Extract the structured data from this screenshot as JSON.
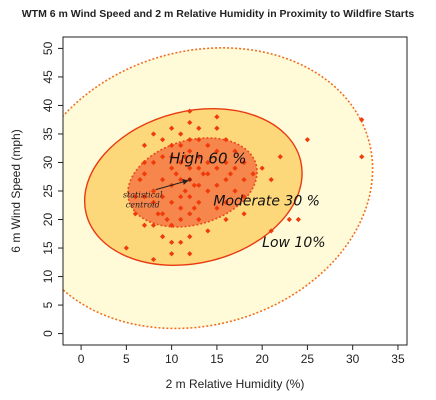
{
  "chart_data": {
    "type": "scatter",
    "title": "WTM 6 m Wind Speed and 2 m Relative Humidity in Proximity to Wildfire Starts",
    "xlabel": "2 m Relative Humidity (%)",
    "ylabel": "6 m Wind Speed (mph)",
    "xlim": [
      -2,
      36
    ],
    "ylim": [
      -2,
      52
    ],
    "x_ticks": [
      0,
      5,
      10,
      15,
      20,
      25,
      30,
      35
    ],
    "y_ticks": [
      0,
      5,
      10,
      15,
      20,
      25,
      30,
      35,
      40,
      45,
      50
    ],
    "grid": false,
    "zones": [
      {
        "label": "Low 10%",
        "center": [
          13,
          25.5
        ],
        "semi_x": 19.5,
        "semi_y": 24,
        "angle_deg": -16,
        "fill": "#fffbd9",
        "stroke": "#f07020",
        "dashed": true
      },
      {
        "label": "Moderate 30 %",
        "center": [
          12.4,
          25.7
        ],
        "semi_x": 12.2,
        "semi_y": 13.3,
        "angle_deg": -14,
        "fill": "#fdd87a",
        "stroke": "#e93a10",
        "dashed": false
      },
      {
        "label": "High 60 %",
        "center": [
          12.3,
          26.5
        ],
        "semi_x": 7.3,
        "semi_y": 7.4,
        "angle_deg": -16,
        "fill": "#f7864c",
        "stroke": "#e94a20",
        "dashed": true
      }
    ],
    "centroid": {
      "x": 12,
      "y": 27,
      "label": "statistical\ncentroid"
    },
    "points": [
      [
        5,
        15
      ],
      [
        6,
        21
      ],
      [
        6,
        24
      ],
      [
        6.5,
        27
      ],
      [
        7,
        19
      ],
      [
        7,
        24
      ],
      [
        7,
        28
      ],
      [
        7,
        30
      ],
      [
        7,
        33
      ],
      [
        8,
        13
      ],
      [
        8,
        19
      ],
      [
        8,
        23
      ],
      [
        8,
        25
      ],
      [
        8,
        30
      ],
      [
        8,
        35
      ],
      [
        8.5,
        21
      ],
      [
        9,
        17
      ],
      [
        9,
        21
      ],
      [
        9,
        24
      ],
      [
        9,
        27
      ],
      [
        9,
        31
      ],
      [
        9,
        34
      ],
      [
        9.5,
        20
      ],
      [
        10,
        14
      ],
      [
        10,
        16
      ],
      [
        10,
        19
      ],
      [
        10,
        23
      ],
      [
        10,
        26
      ],
      [
        10,
        29
      ],
      [
        10,
        31
      ],
      [
        10,
        33
      ],
      [
        10,
        36
      ],
      [
        10.5,
        28
      ],
      [
        11,
        16
      ],
      [
        11,
        20
      ],
      [
        11,
        22
      ],
      [
        11,
        24
      ],
      [
        11,
        27
      ],
      [
        11,
        30
      ],
      [
        11,
        33
      ],
      [
        11,
        35
      ],
      [
        11.5,
        25
      ],
      [
        11.5,
        31
      ],
      [
        12,
        14
      ],
      [
        12,
        17
      ],
      [
        12,
        21
      ],
      [
        12,
        24
      ],
      [
        12,
        27
      ],
      [
        12,
        29
      ],
      [
        12,
        32
      ],
      [
        12,
        34
      ],
      [
        12,
        37
      ],
      [
        12,
        39
      ],
      [
        12.5,
        22
      ],
      [
        12.5,
        26
      ],
      [
        13,
        20
      ],
      [
        13,
        23
      ],
      [
        13,
        26
      ],
      [
        13,
        29
      ],
      [
        13,
        31
      ],
      [
        13,
        34
      ],
      [
        13,
        36
      ],
      [
        13.5,
        28
      ],
      [
        14,
        18
      ],
      [
        14,
        25
      ],
      [
        14,
        28
      ],
      [
        14,
        30
      ],
      [
        14,
        33
      ],
      [
        15,
        22
      ],
      [
        15,
        26
      ],
      [
        15,
        29
      ],
      [
        15,
        32
      ],
      [
        15,
        36
      ],
      [
        15,
        38
      ],
      [
        16,
        20
      ],
      [
        16,
        23
      ],
      [
        16,
        27
      ],
      [
        16,
        30
      ],
      [
        16,
        34
      ],
      [
        16.5,
        28
      ],
      [
        17,
        25
      ],
      [
        17,
        29
      ],
      [
        17,
        32
      ],
      [
        18,
        21
      ],
      [
        18,
        24
      ],
      [
        18,
        27
      ],
      [
        18,
        30
      ],
      [
        19,
        28
      ],
      [
        20,
        29
      ],
      [
        21,
        18
      ],
      [
        21,
        27
      ],
      [
        22,
        31
      ],
      [
        23,
        20
      ],
      [
        24,
        20
      ],
      [
        25,
        34
      ],
      [
        31,
        37.5
      ],
      [
        31,
        31
      ]
    ]
  },
  "colors": {
    "point": "#f03a0a",
    "centroid_dot": "#8a1a00"
  }
}
